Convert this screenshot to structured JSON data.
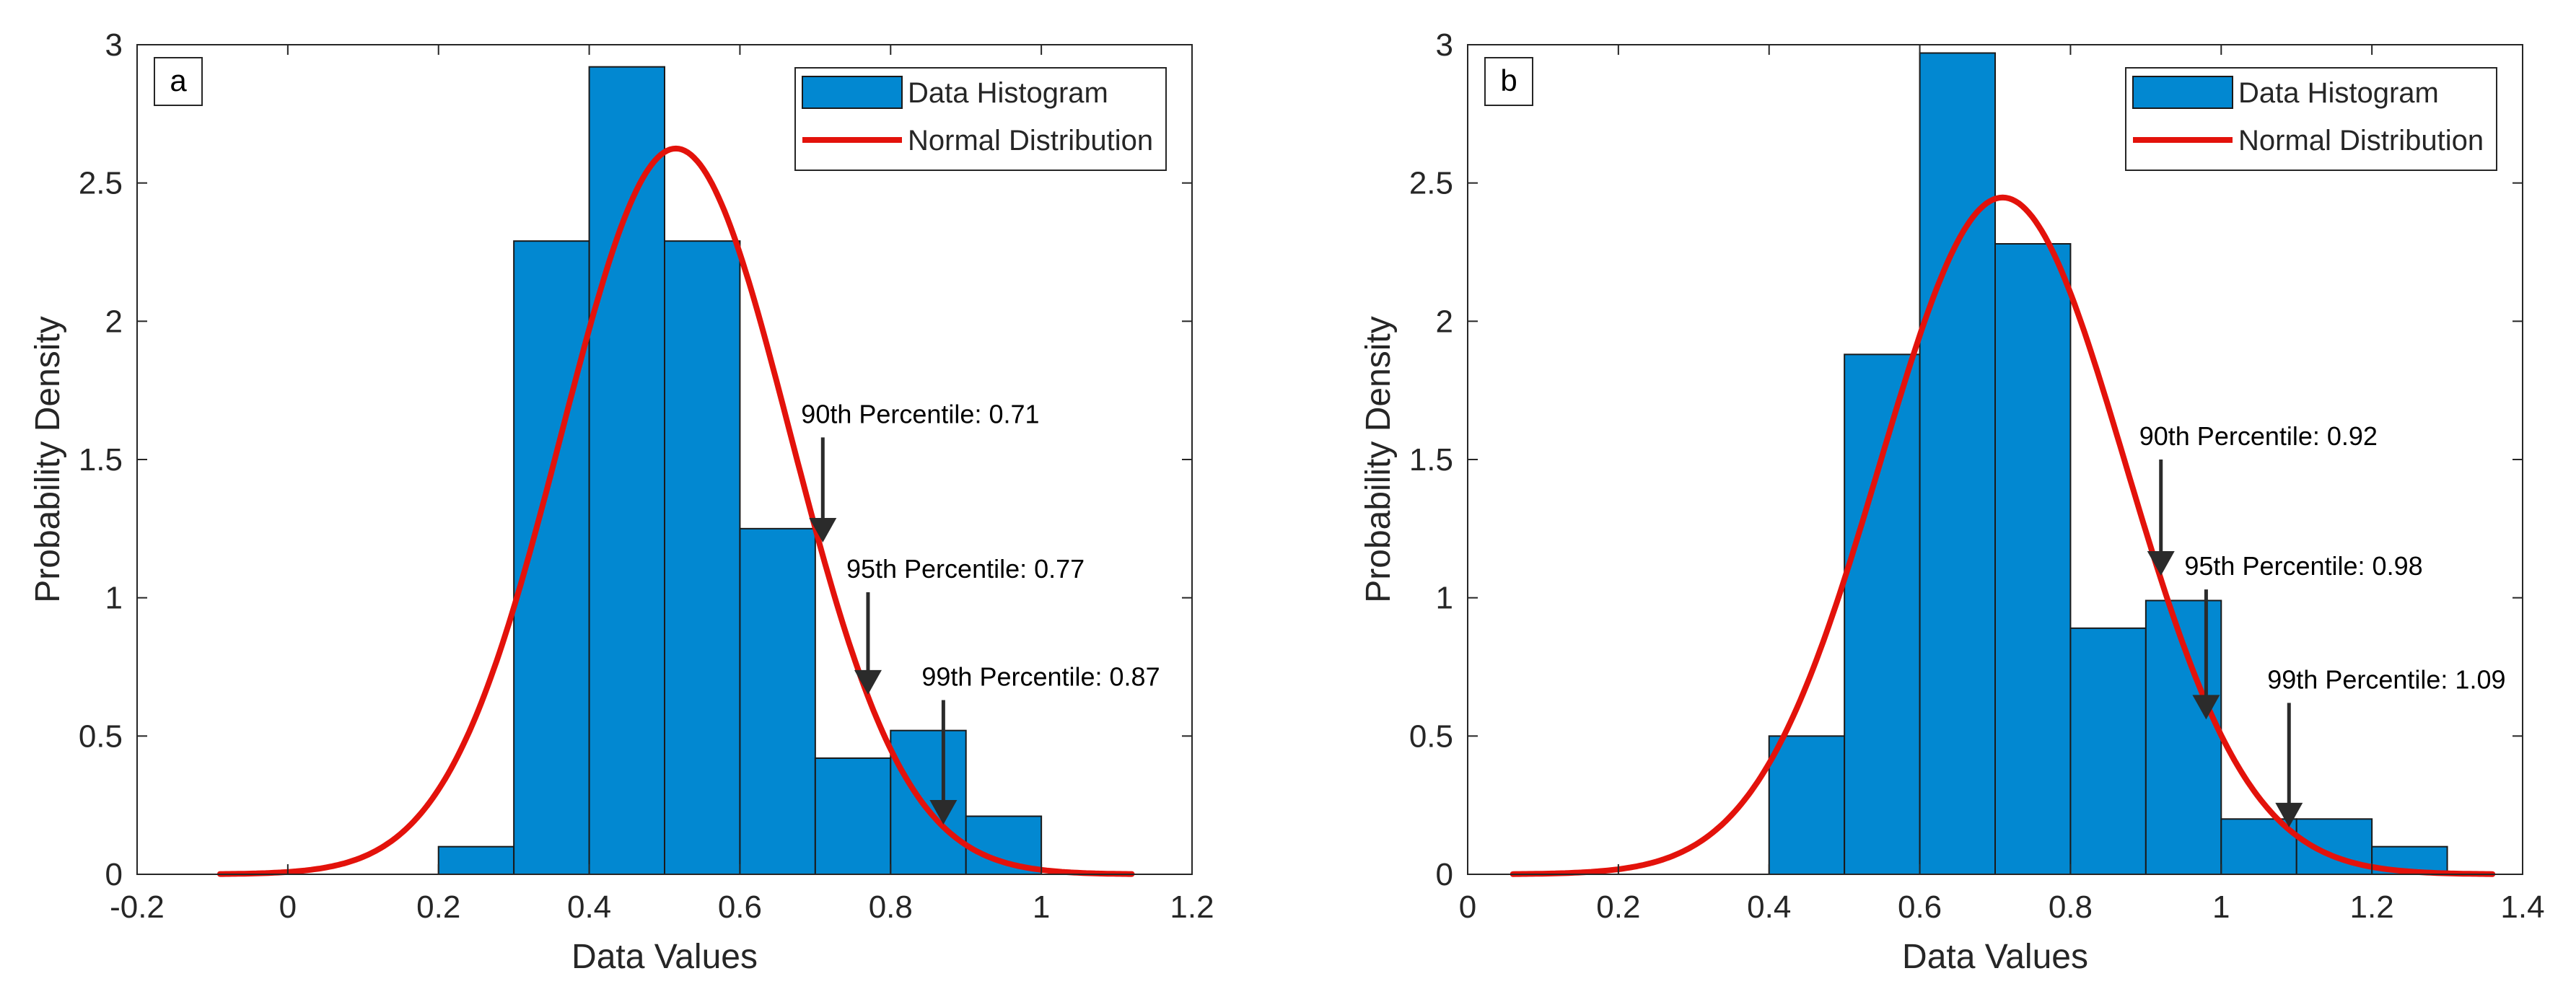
{
  "colors": {
    "bar_fill": "#0288D1",
    "bar_edge": "#1a1a1a",
    "curve": "#E3120B",
    "axis": "#262626",
    "arrow": "#2b2b2b"
  },
  "chart_data": [
    {
      "panel_label": "a",
      "type": "bar",
      "xlabel": "Data Values",
      "ylabel": "Probability Density",
      "xlim": [
        -0.2,
        1.2
      ],
      "ylim": [
        0,
        3
      ],
      "xticks": [
        -0.2,
        0,
        0.2,
        0.4,
        0.6,
        0.8,
        1,
        1.2
      ],
      "xtick_labels": [
        "-0.2",
        "0",
        "0.2",
        "0.4",
        "0.6",
        "0.8",
        "1",
        "1.2"
      ],
      "yticks": [
        0,
        0.5,
        1,
        1.5,
        2,
        2.5,
        3
      ],
      "ytick_labels": [
        "0",
        "0.5",
        "1",
        "1.5",
        "2",
        "2.5",
        "3"
      ],
      "legend_position": "top-right",
      "histogram": {
        "name": "Data Histogram",
        "bin_edges": [
          0.2,
          0.3,
          0.4,
          0.5,
          0.6,
          0.7,
          0.8,
          0.9,
          1.0
        ],
        "values": [
          0.1,
          2.29,
          2.92,
          2.29,
          1.25,
          0.42,
          0.52,
          0.21
        ]
      },
      "normal_fit": {
        "name": "Normal Distribution",
        "mean": 0.515,
        "sd": 0.152,
        "x_range": [
          -0.09,
          1.12
        ]
      },
      "annotations": [
        {
          "text": "90th Percentile: 0.71",
          "x": 0.71,
          "y_tip": 1.2,
          "y_tail": 1.58
        },
        {
          "text": "95th Percentile: 0.77",
          "x": 0.77,
          "y_tip": 0.65,
          "y_tail": 1.02
        },
        {
          "text": "99th Percentile: 0.87",
          "x": 0.87,
          "y_tip": 0.18,
          "y_tail": 0.63
        }
      ]
    },
    {
      "panel_label": "b",
      "type": "bar",
      "xlabel": "Data Values",
      "ylabel": "Probability Density",
      "xlim": [
        0,
        1.4
      ],
      "ylim": [
        0,
        3
      ],
      "xticks": [
        0,
        0.2,
        0.4,
        0.6,
        0.8,
        1,
        1.2,
        1.4
      ],
      "xtick_labels": [
        "0",
        "0.2",
        "0.4",
        "0.6",
        "0.8",
        "1",
        "1.2",
        "1.4"
      ],
      "yticks": [
        0,
        0.5,
        1,
        1.5,
        2,
        2.5,
        3
      ],
      "ytick_labels": [
        "0",
        "0.5",
        "1",
        "1.5",
        "2",
        "2.5",
        "3"
      ],
      "legend_position": "top-right",
      "histogram": {
        "name": "Data Histogram",
        "bin_edges": [
          0.4,
          0.5,
          0.6,
          0.7,
          0.8,
          0.9,
          1.0,
          1.1,
          1.2,
          1.3
        ],
        "values": [
          0.5,
          1.88,
          2.97,
          2.28,
          0.89,
          0.99,
          0.2,
          0.2,
          0.1
        ]
      },
      "normal_fit": {
        "name": "Normal Distribution",
        "mean": 0.71,
        "sd": 0.163,
        "x_range": [
          0.06,
          1.36
        ]
      },
      "annotations": [
        {
          "text": "90th Percentile: 0.92",
          "x": 0.92,
          "y_tip": 1.08,
          "y_tail": 1.5
        },
        {
          "text": "95th Percentile: 0.98",
          "x": 0.98,
          "y_tip": 0.56,
          "y_tail": 1.03
        },
        {
          "text": "99th Percentile: 1.09",
          "x": 1.09,
          "y_tip": 0.17,
          "y_tail": 0.62
        }
      ]
    }
  ]
}
